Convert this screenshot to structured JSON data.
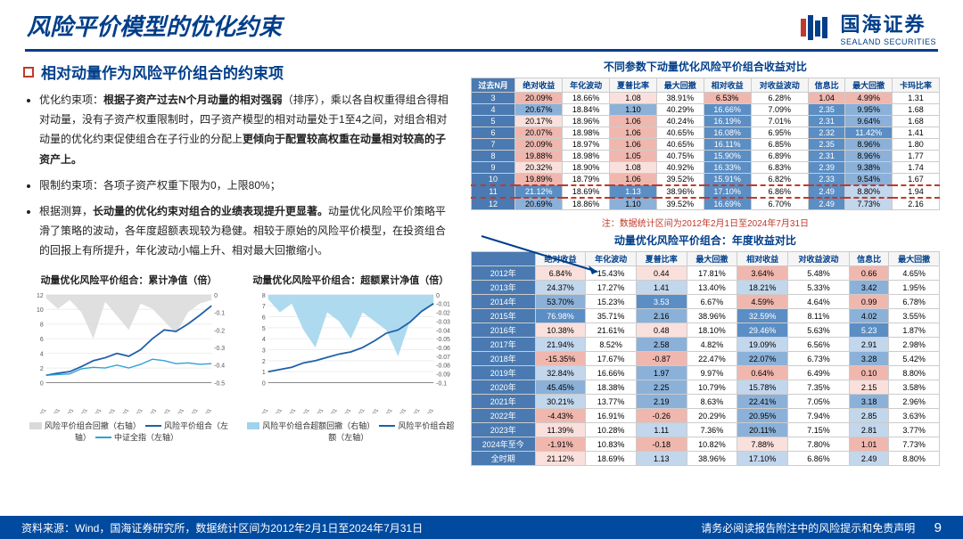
{
  "header": {
    "title": "风险平价模型的优化约束",
    "logo_cn": "国海证券",
    "logo_en": "SEALAND SECURITIES"
  },
  "subhead": "相对动量作为风险平价组合的约束项",
  "bullets": [
    "优化约束项：<b>根据子资产过去N个月动量的相对强弱</b>（排序），乘以各自权重得组合得相对动量，没有子资产权重限制时，四子资产模型的相对动量处于1至4之间，对组合相对动量的优化约束促使组合在子行业的分配上<b>更倾向于配置较高权重在动量相对较高的子资产上。</b>",
    "限制约束项：各项子资产权重下限为0，上限80%；",
    "根据测算，<b>长动量的优化约束对组合的业绩表现提升更显著。</b>动量优化风险平价策略平滑了策略的波动，各年度超额表现较为稳健。相较于原始的风险平价模型，在投资组合的回报上有所提升，年化波动小幅上升、相对最大回撤缩小。"
  ],
  "chart1": {
    "title": "动量优化风险平价组合：累计净值（倍）",
    "type": "line-with-drawdown",
    "x_labels": [
      "2012/2/1",
      "2013/2/1",
      "2014/2/1",
      "2015/2/1",
      "2016/2/1",
      "2017/2/1",
      "2018/2/1",
      "2019/2/1",
      "2020/2/1",
      "2021/2/1",
      "2022/2/1",
      "2023/2/1",
      "2024/2/1"
    ],
    "left_ylim": [
      0,
      12
    ],
    "left_ticks": [
      0,
      2,
      4,
      6,
      8,
      10,
      12
    ],
    "right_ylim": [
      -0.5,
      0
    ],
    "right_ticks": [
      0,
      -0.1,
      -0.2,
      -0.3,
      -0.4,
      -0.5
    ],
    "series": [
      {
        "name": "风险平价组合回撤（右轴）",
        "type": "area",
        "color": "#d9d9d9",
        "axis": "right",
        "values": [
          -0.02,
          -0.08,
          -0.03,
          -0.1,
          -0.25,
          -0.04,
          -0.12,
          -0.2,
          -0.05,
          -0.08,
          -0.15,
          -0.22,
          -0.1,
          -0.05,
          -0.03
        ]
      },
      {
        "name": "风险平价组合（左轴）",
        "type": "line",
        "color": "#1f5fa8",
        "axis": "left",
        "width": 1.8,
        "values": [
          1.0,
          1.3,
          1.5,
          2.2,
          3.0,
          3.4,
          4.0,
          3.6,
          4.5,
          6.0,
          7.2,
          7.0,
          8.0,
          9.2,
          10.5
        ]
      },
      {
        "name": "中证全指（左轴）",
        "type": "line",
        "color": "#2ea3d6",
        "axis": "left",
        "width": 1.4,
        "values": [
          1.0,
          1.1,
          1.2,
          1.9,
          2.1,
          2.0,
          2.4,
          2.0,
          2.5,
          3.2,
          3.0,
          2.6,
          2.7,
          2.5,
          2.6
        ]
      }
    ],
    "legend": [
      "风险平价组合回撤（右轴）",
      "风险平价组合（左轴）",
      "中证全指（左轴）"
    ]
  },
  "chart2": {
    "title": "动量优化风险平价组合：超额累计净值（倍）",
    "type": "line-with-drawdown",
    "x_labels": [
      "2012/2/1",
      "2013/2/1",
      "2014/2/1",
      "2015/2/1",
      "2016/2/1",
      "2017/2/1",
      "2018/2/1",
      "2019/2/1",
      "2020/2/1",
      "2021/2/1",
      "2022/2/1",
      "2023/2/1",
      "2024/2/1"
    ],
    "left_ylim": [
      0,
      8
    ],
    "left_ticks": [
      0,
      1,
      2,
      3,
      4,
      5,
      6,
      7,
      8
    ],
    "right_ylim": [
      -0.1,
      0
    ],
    "right_ticks": [
      0,
      -0.01,
      -0.02,
      -0.03,
      -0.04,
      -0.05,
      -0.06,
      -0.07,
      -0.08,
      -0.09,
      -0.1
    ],
    "series": [
      {
        "name": "风险平价组合超额回撤（右轴）",
        "type": "area",
        "color": "#9fd3ec",
        "axis": "right",
        "values": [
          -0.005,
          -0.02,
          -0.01,
          -0.04,
          -0.06,
          -0.02,
          -0.03,
          -0.05,
          -0.02,
          -0.03,
          -0.04,
          -0.07,
          -0.03,
          -0.02,
          -0.01
        ]
      },
      {
        "name": "风险平价组合超额（左轴）",
        "type": "line",
        "color": "#1f5fa8",
        "axis": "left",
        "width": 1.8,
        "values": [
          1.0,
          1.2,
          1.4,
          1.8,
          2.0,
          2.3,
          2.6,
          2.8,
          3.2,
          3.8,
          4.5,
          4.8,
          5.5,
          6.5,
          7.2
        ]
      }
    ],
    "legend": [
      "风险平价组合超额回撤（右轴）",
      "风险平价组合超额（左轴）"
    ]
  },
  "table1": {
    "title": "不同参数下动量优化风险平价组合收益对比",
    "columns": [
      "过去N月",
      "绝对收益",
      "年化波动",
      "夏普比率",
      "最大回撤",
      "相对收益",
      "对收益波动",
      "信息比",
      "最大回撤",
      "卡玛比率"
    ],
    "rows": [
      [
        "3",
        "20.09%",
        "18.66%",
        "1.08",
        "38.91%",
        "6.53%",
        "6.28%",
        "1.04",
        "4.99%",
        "1.31"
      ],
      [
        "4",
        "20.67%",
        "18.84%",
        "1.10",
        "40.29%",
        "16.66%",
        "7.09%",
        "2.35",
        "9.95%",
        "1.68"
      ],
      [
        "5",
        "20.17%",
        "18.96%",
        "1.06",
        "40.24%",
        "16.19%",
        "7.01%",
        "2.31",
        "9.64%",
        "1.68"
      ],
      [
        "6",
        "20.07%",
        "18.98%",
        "1.06",
        "40.65%",
        "16.08%",
        "6.95%",
        "2.32",
        "11.42%",
        "1.41"
      ],
      [
        "7",
        "20.09%",
        "18.97%",
        "1.06",
        "40.65%",
        "16.11%",
        "6.85%",
        "2.35",
        "8.96%",
        "1.80"
      ],
      [
        "8",
        "19.88%",
        "18.98%",
        "1.05",
        "40.75%",
        "15.90%",
        "6.89%",
        "2.31",
        "8.96%",
        "1.77"
      ],
      [
        "9",
        "20.32%",
        "18.90%",
        "1.08",
        "40.92%",
        "16.33%",
        "6.83%",
        "2.39",
        "9.38%",
        "1.74"
      ],
      [
        "10",
        "19.89%",
        "18.79%",
        "1.06",
        "39.52%",
        "15.91%",
        "6.82%",
        "2.33",
        "9.54%",
        "1.67"
      ],
      [
        "11",
        "21.12%",
        "18.69%",
        "1.13",
        "38.96%",
        "17.10%",
        "6.86%",
        "2.49",
        "8.80%",
        "1.94"
      ],
      [
        "12",
        "20.69%",
        "18.86%",
        "1.10",
        "39.52%",
        "16.69%",
        "6.70%",
        "2.49",
        "7.73%",
        "2.16"
      ]
    ],
    "dash_row_idx": 8,
    "heat_cols": [
      1,
      3,
      5,
      7,
      8
    ]
  },
  "note": "注：数据统计区间为2012年2月1日至2024年7月31日",
  "table2": {
    "title": "动量优化风险平价组合：年度收益对比",
    "columns": [
      "",
      "绝对收益",
      "年化波动",
      "夏普比率",
      "最大回撤",
      "相对收益",
      "对收益波动",
      "信息比",
      "最大回撤"
    ],
    "rows": [
      [
        "2012年",
        "6.84%",
        "15.43%",
        "0.44",
        "17.81%",
        "3.64%",
        "5.48%",
        "0.66",
        "4.65%"
      ],
      [
        "2013年",
        "24.37%",
        "17.27%",
        "1.41",
        "13.40%",
        "18.21%",
        "5.33%",
        "3.42",
        "1.95%"
      ],
      [
        "2014年",
        "53.70%",
        "15.23%",
        "3.53",
        "6.67%",
        "4.59%",
        "4.64%",
        "0.99",
        "6.78%"
      ],
      [
        "2015年",
        "76.98%",
        "35.71%",
        "2.16",
        "38.96%",
        "32.59%",
        "8.11%",
        "4.02",
        "3.55%"
      ],
      [
        "2016年",
        "10.38%",
        "21.61%",
        "0.48",
        "18.10%",
        "29.46%",
        "5.63%",
        "5.23",
        "1.87%"
      ],
      [
        "2017年",
        "21.94%",
        "8.52%",
        "2.58",
        "4.82%",
        "19.09%",
        "6.56%",
        "2.91",
        "2.98%"
      ],
      [
        "2018年",
        "-15.35%",
        "17.67%",
        "-0.87",
        "22.47%",
        "22.07%",
        "6.73%",
        "3.28",
        "5.42%"
      ],
      [
        "2019年",
        "32.84%",
        "16.66%",
        "1.97",
        "9.97%",
        "0.64%",
        "6.49%",
        "0.10",
        "8.80%"
      ],
      [
        "2020年",
        "45.45%",
        "18.38%",
        "2.25",
        "10.79%",
        "15.78%",
        "7.35%",
        "2.15",
        "3.58%"
      ],
      [
        "2021年",
        "30.21%",
        "13.77%",
        "2.19",
        "8.63%",
        "22.41%",
        "7.05%",
        "3.18",
        "2.96%"
      ],
      [
        "2022年",
        "-4.43%",
        "16.91%",
        "-0.26",
        "20.29%",
        "20.95%",
        "7.94%",
        "2.85",
        "3.63%"
      ],
      [
        "2023年",
        "11.39%",
        "10.28%",
        "1.11",
        "7.36%",
        "20.11%",
        "7.15%",
        "2.81",
        "3.77%"
      ],
      [
        "2024年至今",
        "-1.91%",
        "10.83%",
        "-0.18",
        "10.82%",
        "7.88%",
        "7.80%",
        "1.01",
        "7.73%"
      ],
      [
        "全时期",
        "21.12%",
        "18.69%",
        "1.13",
        "38.96%",
        "17.10%",
        "6.86%",
        "2.49",
        "8.80%"
      ]
    ]
  },
  "footer": {
    "left": "资料来源：Wind，国海证券研究所，数据统计区间为2012年2月1日至2024年7月31日",
    "right": "请务必阅读报告附注中的风险提示和免责声明",
    "page": "9"
  }
}
